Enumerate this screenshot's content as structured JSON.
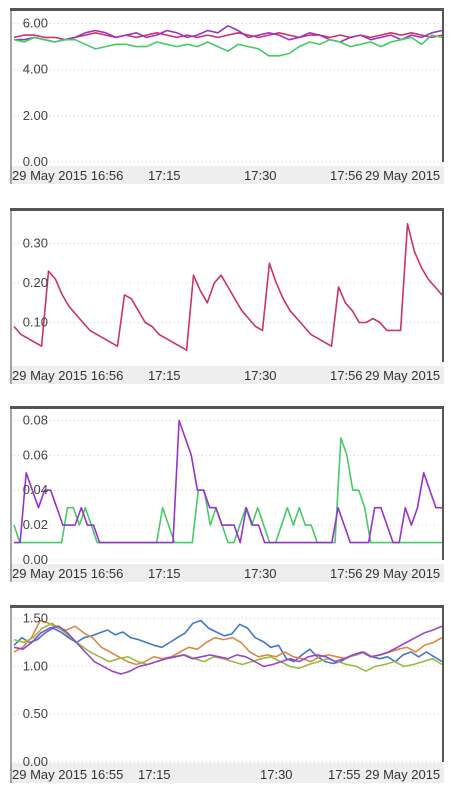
{
  "chart_data": [
    {
      "type": "line",
      "ylim": [
        0,
        6.5
      ],
      "y_ticks": [
        "0.00",
        "2.00",
        "4.00",
        "6.00"
      ],
      "y_tick_values": [
        0,
        2,
        4,
        6
      ],
      "x_tick_labels": [
        "29 May 2015 16:56",
        "17:15",
        "17:30",
        "17:56",
        "29 May 2015"
      ],
      "grid": true,
      "series": [
        {
          "color": "#cc3366",
          "values": [
            5.4,
            5.5,
            5.5,
            5.4,
            5.4,
            5.3,
            5.4,
            5.5,
            5.6,
            5.5,
            5.4,
            5.5,
            5.4,
            5.5,
            5.6,
            5.5,
            5.4,
            5.5,
            5.4,
            5.5,
            5.4,
            5.5,
            5.6,
            5.5,
            5.4,
            5.5,
            5.6,
            5.5,
            5.4,
            5.5,
            5.5,
            5.4,
            5.5,
            5.4,
            5.5,
            5.4,
            5.5,
            5.6,
            5.5,
            5.6,
            5.5,
            5.4,
            5.5
          ]
        },
        {
          "color": "#9933cc",
          "values": [
            5.3,
            5.3,
            5.4,
            5.3,
            5.2,
            5.3,
            5.4,
            5.6,
            5.7,
            5.6,
            5.4,
            5.5,
            5.6,
            5.4,
            5.5,
            5.7,
            5.6,
            5.4,
            5.5,
            5.7,
            5.6,
            5.9,
            5.7,
            5.4,
            5.5,
            5.6,
            5.5,
            5.3,
            5.4,
            5.6,
            5.5,
            5.3,
            5.2,
            5.4,
            5.5,
            5.3,
            5.4,
            5.5,
            5.3,
            5.5,
            5.4,
            5.6,
            5.7
          ]
        },
        {
          "color": "#44cc66",
          "values": [
            5.3,
            5.2,
            5.4,
            5.3,
            5.2,
            5.3,
            5.3,
            5.1,
            4.9,
            5.0,
            5.1,
            5.1,
            5.0,
            5.0,
            5.2,
            5.1,
            5.0,
            5.1,
            5.0,
            5.2,
            5.0,
            4.8,
            5.1,
            5.0,
            4.9,
            4.6,
            4.6,
            4.7,
            5.0,
            5.2,
            5.1,
            5.3,
            5.2,
            5.0,
            5.1,
            5.2,
            5.0,
            5.2,
            5.3,
            5.4,
            5.1,
            5.5,
            5.4
          ]
        }
      ]
    },
    {
      "type": "line",
      "ylim": [
        0,
        0.38
      ],
      "y_ticks": [
        "0.10",
        "0.20",
        "0.30"
      ],
      "y_tick_values": [
        0.1,
        0.2,
        0.3
      ],
      "x_tick_labels": [
        "29 May 2015 16:56",
        "17:15",
        "17:30",
        "17:56",
        "29 May 2015"
      ],
      "grid": true,
      "series": [
        {
          "color": "#cc3366",
          "values": [
            0.09,
            0.07,
            0.06,
            0.05,
            0.04,
            0.23,
            0.21,
            0.17,
            0.14,
            0.12,
            0.1,
            0.08,
            0.07,
            0.06,
            0.05,
            0.04,
            0.17,
            0.16,
            0.13,
            0.1,
            0.09,
            0.07,
            0.06,
            0.05,
            0.04,
            0.03,
            0.22,
            0.18,
            0.15,
            0.2,
            0.22,
            0.19,
            0.16,
            0.13,
            0.11,
            0.09,
            0.08,
            0.25,
            0.2,
            0.16,
            0.13,
            0.11,
            0.09,
            0.07,
            0.06,
            0.05,
            0.04,
            0.19,
            0.15,
            0.13,
            0.1,
            0.1,
            0.11,
            0.1,
            0.08,
            0.08,
            0.08,
            0.35,
            0.28,
            0.24,
            0.21,
            0.19,
            0.17
          ]
        }
      ]
    },
    {
      "type": "line",
      "ylim": [
        0,
        0.086
      ],
      "y_ticks": [
        "0.00",
        "0.02",
        "0.04",
        "0.06",
        "0.08"
      ],
      "y_tick_values": [
        0,
        0.02,
        0.04,
        0.06,
        0.08
      ],
      "x_tick_labels": [
        "29 May 2015 16:56",
        "17:15",
        "17:30",
        "17:56",
        "29 May 2015"
      ],
      "grid": true,
      "series": [
        {
          "color": "#44cc66",
          "values": [
            0.02,
            0.01,
            0.01,
            0.01,
            0.01,
            0.01,
            0.01,
            0.01,
            0.01,
            0.03,
            0.03,
            0.02,
            0.03,
            0.02,
            0.01,
            0.01,
            0.01,
            0.01,
            0.01,
            0.01,
            0.01,
            0.01,
            0.01,
            0.01,
            0.01,
            0.03,
            0.02,
            0.01,
            0.01,
            0.01,
            0.01,
            0.04,
            0.04,
            0.02,
            0.03,
            0.02,
            0.01,
            0.01,
            0.02,
            0.03,
            0.02,
            0.03,
            0.02,
            0.01,
            0.01,
            0.02,
            0.03,
            0.02,
            0.03,
            0.02,
            0.02,
            0.01,
            0.01,
            0.01,
            0.01,
            0.07,
            0.06,
            0.04,
            0.04,
            0.03,
            0.01,
            0.01,
            0.01,
            0.01,
            0.01,
            0.01,
            0.01,
            0.01,
            0.01,
            0.01,
            0.01,
            0.01,
            0.01
          ]
        },
        {
          "color": "#9933cc",
          "values": [
            0.01,
            0.01,
            0.05,
            0.04,
            0.03,
            0.04,
            0.04,
            0.03,
            0.02,
            0.02,
            0.02,
            0.03,
            0.02,
            0.02,
            0.01,
            0.01,
            0.01,
            0.01,
            0.01,
            0.01,
            0.01,
            0.01,
            0.01,
            0.01,
            0.01,
            0.01,
            0.01,
            0.08,
            0.07,
            0.06,
            0.04,
            0.04,
            0.03,
            0.03,
            0.02,
            0.02,
            0.02,
            0.01,
            0.03,
            0.02,
            0.02,
            0.01,
            0.01,
            0.01,
            0.01,
            0.01,
            0.01,
            0.01,
            0.01,
            0.01,
            0.01,
            0.01,
            0.01,
            0.03,
            0.02,
            0.01,
            0.01,
            0.01,
            0.01,
            0.03,
            0.03,
            0.02,
            0.01,
            0.01,
            0.03,
            0.02,
            0.03,
            0.05,
            0.04,
            0.03,
            0.03
          ]
        }
      ]
    },
    {
      "type": "line",
      "ylim": [
        0,
        1.6
      ],
      "y_ticks": [
        "0.00",
        "0.50",
        "1.00",
        "1.50"
      ],
      "y_tick_values": [
        0,
        0.5,
        1,
        1.5
      ],
      "x_tick_labels": [
        "29 May 2015 16:55",
        "17:15",
        "17:30",
        "17:55",
        "29 May 2015"
      ],
      "grid": true,
      "series": [
        {
          "color": "#4477cc",
          "values": [
            1.22,
            1.3,
            1.25,
            1.28,
            1.35,
            1.4,
            1.36,
            1.3,
            1.25,
            1.3,
            1.32,
            1.35,
            1.38,
            1.33,
            1.36,
            1.3,
            1.28,
            1.25,
            1.22,
            1.2,
            1.25,
            1.3,
            1.35,
            1.45,
            1.48,
            1.4,
            1.36,
            1.32,
            1.34,
            1.44,
            1.4,
            1.3,
            1.26,
            1.2,
            1.22,
            1.08,
            1.05,
            1.12,
            1.18,
            1.1,
            1.05,
            1.03,
            1.05,
            1.1,
            1.12,
            1.15,
            1.1,
            1.08,
            1.1,
            1.05,
            1.12,
            1.15,
            1.1,
            1.15,
            1.1,
            1.05
          ]
        },
        {
          "color": "#dd8844",
          "values": [
            1.15,
            1.2,
            1.3,
            1.48,
            1.45,
            1.4,
            1.38,
            1.42,
            1.35,
            1.3,
            1.2,
            1.15,
            1.1,
            1.05,
            1.02,
            1.05,
            1.1,
            1.08,
            1.1,
            1.15,
            1.2,
            1.18,
            1.25,
            1.3,
            1.28,
            1.3,
            1.25,
            1.15,
            1.1,
            1.12,
            1.1,
            1.15,
            1.1,
            1.08,
            1.05,
            1.1,
            1.12,
            1.1,
            1.08,
            1.12,
            1.15,
            1.1,
            1.12,
            1.15,
            1.18,
            1.2,
            1.15,
            1.22,
            1.25,
            1.3
          ]
        },
        {
          "color": "#99bb44",
          "values": [
            1.28,
            1.25,
            1.3,
            1.4,
            1.45,
            1.38,
            1.3,
            1.22,
            1.15,
            1.1,
            1.05,
            1.08,
            1.1,
            1.05,
            1.02,
            1.05,
            1.08,
            1.1,
            1.12,
            1.08,
            1.05,
            1.1,
            1.08,
            1.05,
            1.02,
            1.05,
            1.08,
            1.1,
            1.05,
            1.0,
            0.98,
            1.02,
            1.05,
            1.08,
            1.05,
            1.02,
            1.0,
            0.95,
            1.0,
            1.02,
            1.05,
            1.0,
            1.02,
            1.05,
            1.08,
            1.02
          ]
        },
        {
          "color": "#9944cc",
          "values": [
            1.2,
            1.18,
            1.25,
            1.35,
            1.4,
            1.42,
            1.35,
            1.25,
            1.15,
            1.05,
            1.0,
            0.95,
            0.92,
            0.95,
            1.0,
            1.02,
            1.05,
            1.08,
            1.1,
            1.12,
            1.08,
            1.1,
            1.12,
            1.1,
            1.08,
            1.12,
            1.1,
            1.05,
            1.0,
            1.02,
            1.05,
            1.08,
            1.05,
            1.1,
            1.12,
            1.1,
            1.05,
            1.08,
            1.12,
            1.15,
            1.1,
            1.12,
            1.15,
            1.2,
            1.25,
            1.3,
            1.35,
            1.38,
            1.42
          ]
        }
      ]
    }
  ]
}
